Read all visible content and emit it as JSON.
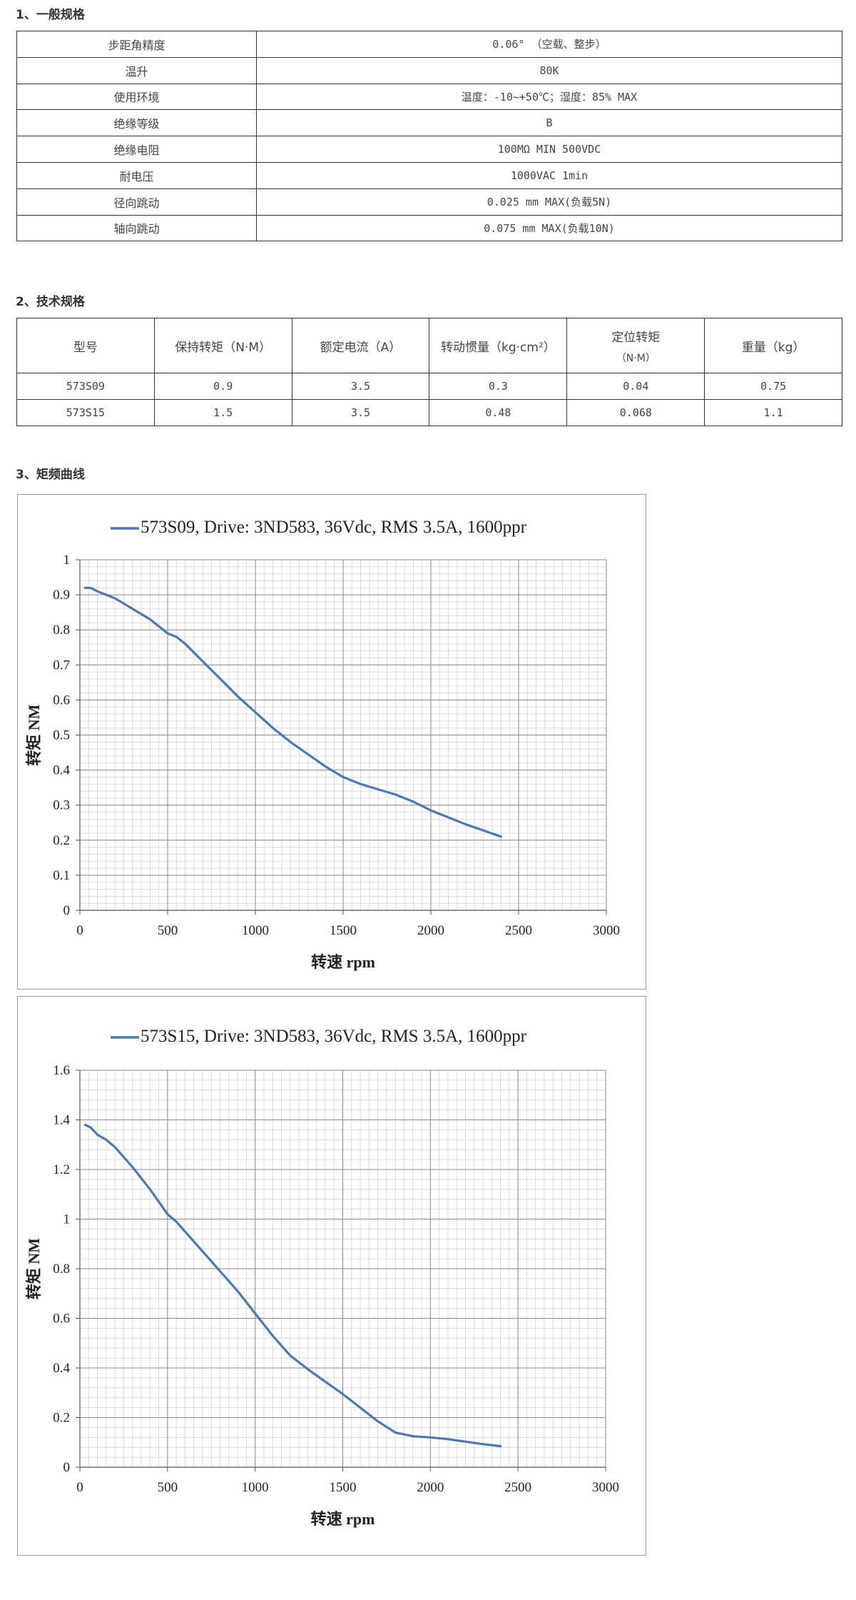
{
  "sections": {
    "general": "1、一般规格",
    "tech": "2、技术规格",
    "curve": "3、矩频曲线"
  },
  "general_specs": [
    {
      "label": "步距角精度",
      "value": "0.06° （空载、整步）"
    },
    {
      "label": "温升",
      "value": "80K"
    },
    {
      "label": "使用环境",
      "value": "温度：-10~+50℃；湿度：85% MAX"
    },
    {
      "label": "绝缘等级",
      "value": "B"
    },
    {
      "label": "绝缘电阻",
      "value": "100MΩ  MIN 500VDC"
    },
    {
      "label": "耐电压",
      "value": "1000VAC  1min"
    },
    {
      "label": "径向跳动",
      "value": "0.025 mm MAX(负载5N)"
    },
    {
      "label": "轴向跳动",
      "value": "0.075 mm MAX(负载10N)"
    }
  ],
  "tech_specs": {
    "headers": [
      "型号",
      "保持转矩（N·M）",
      "额定电流（A）",
      "转动惯量（kg·cm²）",
      "定位转矩",
      "重量（kg）"
    ],
    "header_sub": "（N·M）",
    "rows": [
      [
        "573S09",
        "0.9",
        "3.5",
        "0.3",
        "0.04",
        "0.75"
      ],
      [
        "573S15",
        "1.5",
        "3.5",
        "0.48",
        "0.068",
        "1.1"
      ]
    ]
  },
  "chart_data": [
    {
      "type": "line",
      "title": "",
      "legend": "573S09, Drive: 3ND583, 36Vdc, RMS 3.5A, 1600ppr",
      "xlabel": "转速 rpm",
      "ylabel": "转矩 NM",
      "xlim": [
        0,
        3000
      ],
      "ylim": [
        0,
        1
      ],
      "xticks": [
        "0",
        "500",
        "1000",
        "1500",
        "2000",
        "2500",
        "3000"
      ],
      "yticks": [
        "0",
        "0.1",
        "0.2",
        "0.3",
        "0.4",
        "0.5",
        "0.6",
        "0.7",
        "0.8",
        "0.9",
        "1"
      ],
      "grid": true,
      "legend_position": "top",
      "color": "#4a78b5",
      "series": [
        {
          "name": "573S09, Drive: 3ND583, 36Vdc, RMS 3.5A, 1600ppr",
          "x": [
            30,
            60,
            100,
            150,
            200,
            300,
            400,
            450,
            500,
            550,
            600,
            700,
            800,
            900,
            1000,
            1100,
            1200,
            1300,
            1400,
            1500,
            1600,
            1700,
            1800,
            1900,
            2000,
            2100,
            2200,
            2300,
            2400
          ],
          "y": [
            0.92,
            0.92,
            0.91,
            0.9,
            0.89,
            0.86,
            0.83,
            0.81,
            0.79,
            0.78,
            0.76,
            0.71,
            0.66,
            0.61,
            0.565,
            0.52,
            0.48,
            0.445,
            0.41,
            0.38,
            0.36,
            0.345,
            0.33,
            0.31,
            0.285,
            0.265,
            0.245,
            0.228,
            0.21
          ]
        }
      ]
    },
    {
      "type": "line",
      "title": "",
      "legend": "573S15, Drive: 3ND583, 36Vdc, RMS 3.5A, 1600ppr",
      "xlabel": "转速 rpm",
      "ylabel": "转矩 NM",
      "xlim": [
        0,
        3000
      ],
      "ylim": [
        0,
        1.6
      ],
      "xticks": [
        "0",
        "500",
        "1000",
        "1500",
        "2000",
        "2500",
        "3000"
      ],
      "yticks": [
        "0",
        "0.2",
        "0.4",
        "0.6",
        "0.8",
        "1",
        "1.2",
        "1.4",
        "1.6"
      ],
      "grid": true,
      "legend_position": "top",
      "color": "#4a78b5",
      "series": [
        {
          "name": "573S15, Drive: 3ND583, 36Vdc, RMS 3.5A, 1600ppr",
          "x": [
            30,
            60,
            100,
            150,
            200,
            300,
            400,
            450,
            500,
            550,
            600,
            700,
            800,
            900,
            1000,
            1100,
            1200,
            1300,
            1400,
            1500,
            1600,
            1700,
            1800,
            1900,
            2000,
            2100,
            2200,
            2300,
            2400
          ],
          "y": [
            1.38,
            1.37,
            1.34,
            1.32,
            1.29,
            1.21,
            1.12,
            1.07,
            1.02,
            0.99,
            0.95,
            0.87,
            0.79,
            0.71,
            0.62,
            0.53,
            0.45,
            0.395,
            0.345,
            0.295,
            0.24,
            0.185,
            0.14,
            0.125,
            0.12,
            0.113,
            0.103,
            0.093,
            0.085
          ]
        }
      ]
    }
  ]
}
